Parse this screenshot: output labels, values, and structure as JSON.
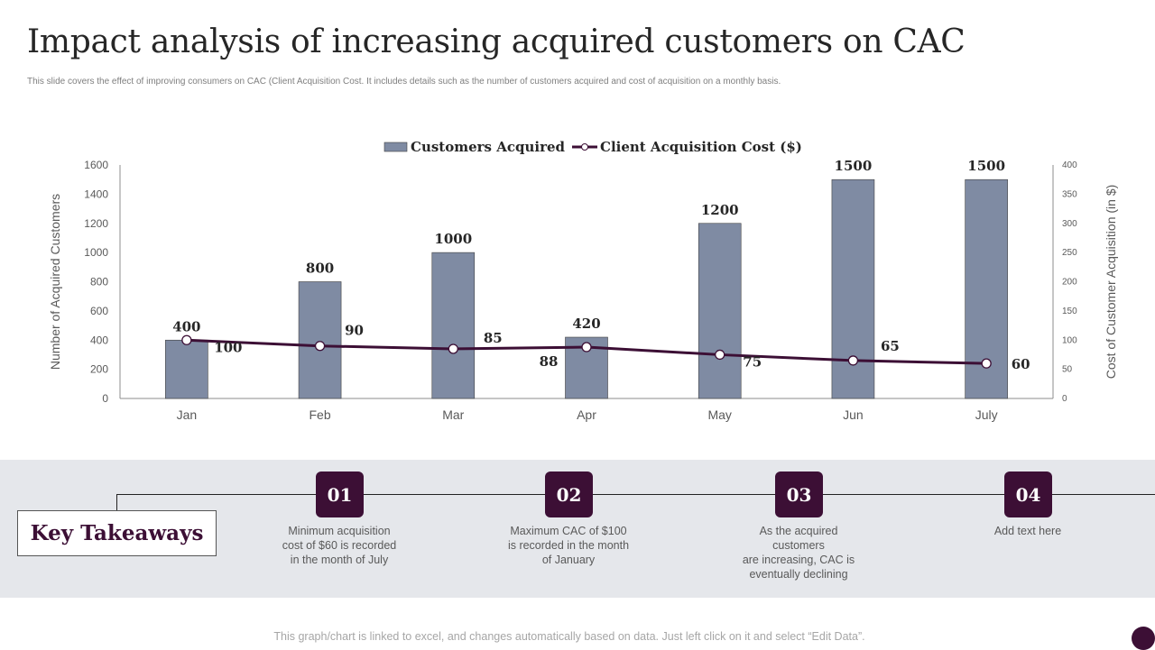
{
  "title": "Impact analysis of increasing acquired customers on CAC",
  "subtitle": "This slide covers the effect of improving consumers on CAC (Client Acquisition Cost. It includes details such as the number of customers acquired and cost of acquisition on a monthly basis.",
  "colors": {
    "bar": "#7f8ba3",
    "line": "#3c0f35",
    "accent": "#3c0f35",
    "band": "#e5e7eb"
  },
  "chart_data": {
    "type": "bar",
    "categories": [
      "Jan",
      "Feb",
      "Mar",
      "Apr",
      "May",
      "Jun",
      "July"
    ],
    "series": [
      {
        "name": "Customers Acquired",
        "type": "bar",
        "axis": "left",
        "values": [
          400,
          800,
          1000,
          420,
          1200,
          1500,
          1500
        ]
      },
      {
        "name": "Client Acquisition Cost ($)",
        "type": "line",
        "axis": "right",
        "values": [
          100,
          90,
          85,
          88,
          75,
          65,
          60
        ]
      }
    ],
    "ylabel": "Number of Acquired Customers",
    "y2label": "Cost of Customer Acquisition (in $)",
    "ylim": [
      0,
      1600
    ],
    "y2lim": [
      0,
      400
    ],
    "yticks": [
      0,
      200,
      400,
      600,
      800,
      1000,
      1200,
      1400,
      1600
    ],
    "y2ticks": [
      0,
      50,
      100,
      150,
      200,
      250,
      300,
      350,
      400
    ],
    "legend_position": "top-center",
    "grid": false
  },
  "takeaways": {
    "heading": "Key Takeaways",
    "items": [
      {
        "num": "01",
        "text": "Minimum acquisition\ncost of $60 is recorded\nin the month of July"
      },
      {
        "num": "02",
        "text": "Maximum CAC of $100\nis recorded in the month\nof January"
      },
      {
        "num": "03",
        "text": "As the acquired\ncustomers\nare increasing, CAC is\neventually declining"
      },
      {
        "num": "04",
        "text": "Add text here"
      }
    ]
  },
  "footer": "This graph/chart is linked to excel, and changes automatically based on data. Just left click on it and select “Edit Data”."
}
